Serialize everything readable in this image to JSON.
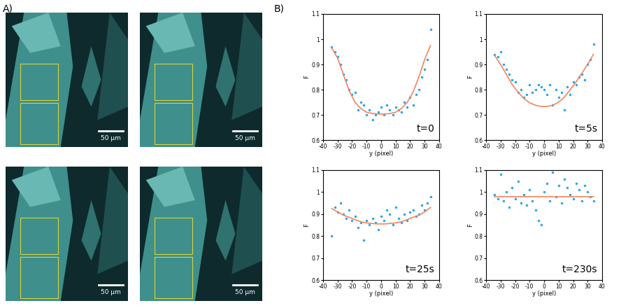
{
  "panel_labels": [
    "A)",
    "B)"
  ],
  "images": [
    {
      "scale_bar": "50 µm"
    },
    {
      "scale_bar": "50 µm"
    },
    {
      "scale_bar": "50 µm"
    },
    {
      "scale_bar": "50 µm"
    }
  ],
  "chart_data": [
    {
      "type": "scatter",
      "annotation": "t=0",
      "x_label": "y (pixel)",
      "y_label": "F",
      "xlim": [
        -40,
        40
      ],
      "ylim": [
        0.6,
        1.1
      ],
      "xticks": [
        -40,
        -30,
        -20,
        -10,
        0,
        10,
        20,
        30,
        40
      ],
      "yticks": [
        0.6,
        0.7,
        0.8,
        0.9,
        1,
        1.1
      ],
      "series": [
        {
          "type": "scatter",
          "color": "#2aa8e0",
          "marker": "point",
          "x": [
            -34,
            -32,
            -30,
            -28,
            -26,
            -24,
            -22,
            -20,
            -18,
            -16,
            -14,
            -12,
            -10,
            -8,
            -6,
            -4,
            -2,
            0,
            2,
            4,
            6,
            8,
            10,
            12,
            14,
            16,
            18,
            20,
            22,
            24,
            26,
            28,
            30,
            32,
            34
          ],
          "values": [
            0.97,
            0.95,
            0.93,
            0.9,
            0.86,
            0.84,
            0.8,
            0.78,
            0.79,
            0.72,
            0.75,
            0.74,
            0.7,
            0.72,
            0.68,
            0.7,
            0.71,
            0.73,
            0.7,
            0.74,
            0.72,
            0.7,
            0.73,
            0.72,
            0.71,
            0.75,
            0.73,
            0.77,
            0.74,
            0.78,
            0.8,
            0.85,
            0.88,
            0.92,
            1.04
          ]
        },
        {
          "type": "line",
          "color": "#f4845f",
          "line_style": "solid",
          "x": [
            -34,
            -30,
            -26,
            -22,
            -18,
            -14,
            -10,
            -6,
            -2,
            2,
            6,
            10,
            14,
            18,
            22,
            26,
            30,
            34
          ],
          "values": [
            0.965,
            0.925,
            0.86,
            0.795,
            0.75,
            0.725,
            0.71,
            0.705,
            0.703,
            0.703,
            0.705,
            0.71,
            0.725,
            0.75,
            0.79,
            0.85,
            0.92,
            0.975
          ]
        }
      ]
    },
    {
      "type": "scatter",
      "annotation": "t=5s",
      "x_label": "y (pixel)",
      "y_label": "F",
      "xlim": [
        -40,
        40
      ],
      "ylim": [
        0.6,
        1.1
      ],
      "xticks": [
        -40,
        -30,
        -20,
        -10,
        0,
        10,
        20,
        30,
        40
      ],
      "yticks": [
        0.6,
        0.7,
        0.8,
        0.9,
        1,
        1.1
      ],
      "series": [
        {
          "type": "scatter",
          "color": "#2aa8e0",
          "marker": "point",
          "x": [
            -34,
            -32,
            -30,
            -28,
            -26,
            -24,
            -22,
            -20,
            -18,
            -16,
            -14,
            -12,
            -10,
            -8,
            -6,
            -4,
            -2,
            0,
            2,
            4,
            6,
            8,
            10,
            12,
            14,
            16,
            18,
            20,
            22,
            24,
            26,
            28,
            30,
            32,
            34
          ],
          "values": [
            0.94,
            0.93,
            0.95,
            0.9,
            0.88,
            0.86,
            0.84,
            0.83,
            0.79,
            0.8,
            0.77,
            0.78,
            0.82,
            0.79,
            0.8,
            0.82,
            0.81,
            0.8,
            0.78,
            0.82,
            0.74,
            0.8,
            0.77,
            0.79,
            0.72,
            0.81,
            0.78,
            0.83,
            0.82,
            0.85,
            0.86,
            0.84,
            0.9,
            0.92,
            0.98
          ]
        },
        {
          "type": "line",
          "color": "#f4845f",
          "line_style": "solid",
          "x": [
            -34,
            -30,
            -26,
            -22,
            -18,
            -14,
            -10,
            -6,
            -2,
            2,
            6,
            10,
            14,
            18,
            22,
            26,
            30,
            34
          ],
          "values": [
            0.935,
            0.9,
            0.86,
            0.82,
            0.79,
            0.765,
            0.748,
            0.738,
            0.733,
            0.733,
            0.738,
            0.75,
            0.77,
            0.8,
            0.83,
            0.865,
            0.9,
            0.94
          ]
        }
      ]
    },
    {
      "type": "scatter",
      "annotation": "t=25s",
      "x_label": "y (pixel)",
      "y_label": "F",
      "xlim": [
        -40,
        40
      ],
      "ylim": [
        0.6,
        1.1
      ],
      "xticks": [
        -40,
        -30,
        -20,
        -10,
        0,
        10,
        20,
        30,
        40
      ],
      "yticks": [
        0.6,
        0.7,
        0.8,
        0.9,
        1,
        1.1
      ],
      "series": [
        {
          "type": "scatter",
          "color": "#2aa8e0",
          "marker": "point",
          "x": [
            -34,
            -32,
            -30,
            -28,
            -26,
            -24,
            -22,
            -20,
            -18,
            -16,
            -14,
            -12,
            -10,
            -8,
            -6,
            -4,
            -2,
            0,
            2,
            4,
            6,
            8,
            10,
            12,
            14,
            16,
            18,
            20,
            22,
            24,
            26,
            28,
            30,
            32,
            34
          ],
          "values": [
            0.8,
            0.93,
            0.91,
            0.95,
            0.9,
            0.88,
            0.92,
            0.87,
            0.89,
            0.84,
            0.86,
            0.78,
            0.87,
            0.85,
            0.88,
            0.86,
            0.83,
            0.89,
            0.87,
            0.92,
            0.9,
            0.85,
            0.93,
            0.88,
            0.86,
            0.9,
            0.87,
            0.91,
            0.92,
            0.89,
            0.9,
            0.94,
            0.92,
            0.95,
            0.98
          ]
        },
        {
          "type": "line",
          "color": "#f4845f",
          "line_style": "solid",
          "x": [
            -34,
            -30,
            -26,
            -22,
            -18,
            -14,
            -10,
            -6,
            -2,
            2,
            6,
            10,
            14,
            18,
            22,
            26,
            30,
            34
          ],
          "values": [
            0.925,
            0.91,
            0.895,
            0.885,
            0.875,
            0.865,
            0.86,
            0.857,
            0.855,
            0.855,
            0.857,
            0.86,
            0.865,
            0.875,
            0.885,
            0.895,
            0.91,
            0.93
          ]
        }
      ]
    },
    {
      "type": "scatter",
      "annotation": "t=230s",
      "x_label": "y (pixel)",
      "y_label": "F",
      "xlim": [
        -40,
        40
      ],
      "ylim": [
        0.6,
        1.1
      ],
      "xticks": [
        -40,
        -30,
        -20,
        -10,
        0,
        10,
        20,
        30,
        40
      ],
      "yticks": [
        0.6,
        0.7,
        0.8,
        0.9,
        1,
        1.1
      ],
      "series": [
        {
          "type": "scatter",
          "color": "#2aa8e0",
          "marker": "point",
          "x": [
            -34,
            -32,
            -30,
            -28,
            -26,
            -24,
            -22,
            -20,
            -18,
            -16,
            -14,
            -12,
            -10,
            -8,
            -6,
            -4,
            -2,
            0,
            2,
            4,
            6,
            8,
            10,
            12,
            14,
            16,
            18,
            20,
            22,
            24,
            26,
            28,
            30,
            32,
            34
          ],
          "values": [
            0.99,
            0.97,
            1.08,
            0.96,
            1.0,
            0.93,
            1.02,
            0.97,
            1.05,
            0.95,
            0.99,
            0.94,
            1.01,
            0.96,
            0.92,
            0.87,
            0.85,
            1.0,
            1.04,
            0.96,
            1.09,
            0.98,
            1.03,
            0.95,
            1.06,
            1.02,
            0.99,
            0.97,
            1.04,
            1.01,
            0.96,
            1.03,
            1.0,
            0.98,
            0.96
          ]
        },
        {
          "type": "line",
          "color": "#f4845f",
          "line_style": "solid",
          "x": [
            -34,
            34
          ],
          "values": [
            0.98,
            0.98
          ]
        }
      ]
    }
  ]
}
